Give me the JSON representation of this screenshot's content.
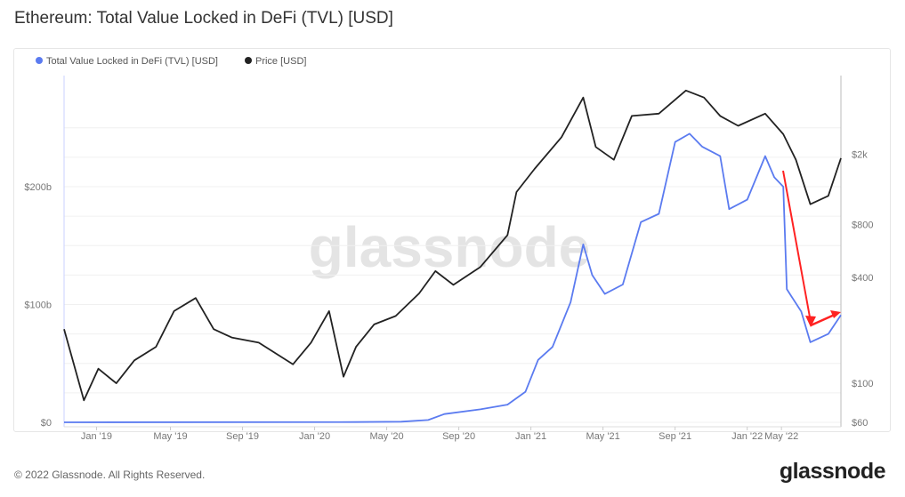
{
  "title": "Ethereum: Total Value Locked in DeFi (TVL) [USD]",
  "footer": "© 2022 Glassnode. All Rights Reserved.",
  "logo": "glassnode",
  "watermark": "glassnode",
  "chart_data": {
    "type": "line",
    "title": "Ethereum: Total Value Locked in DeFi (TVL) [USD]",
    "x_unit": "months since mid-Nov 2018",
    "xlim": [
      0,
      43.1
    ],
    "x_ticks": [
      {
        "m": 1.8,
        "label": "Jan '19"
      },
      {
        "m": 5.9,
        "label": "May '19"
      },
      {
        "m": 9.9,
        "label": "Sep '19"
      },
      {
        "m": 13.9,
        "label": "Jan '20"
      },
      {
        "m": 17.9,
        "label": "May '20"
      },
      {
        "m": 21.9,
        "label": "Sep '20"
      },
      {
        "m": 25.9,
        "label": "Jan '21"
      },
      {
        "m": 29.9,
        "label": "May '21"
      },
      {
        "m": 33.9,
        "label": "Sep '21"
      },
      {
        "m": 37.9,
        "label": "Jan '22"
      },
      {
        "m": 39.8,
        "label": "May '22"
      }
    ],
    "left_axis": {
      "scale": "linear",
      "ylim": [
        0,
        270
      ],
      "ticks": [
        {
          "v": 0,
          "label": "$0"
        },
        {
          "v": 100,
          "label": "$100b"
        },
        {
          "v": 200,
          "label": "$200b"
        }
      ]
    },
    "right_axis": {
      "scale": "log",
      "ylim": [
        60,
        10000
      ],
      "ticks": [
        {
          "v": 60,
          "label": "$60"
        },
        {
          "v": 100,
          "label": "$100"
        },
        {
          "v": 400,
          "label": "$400"
        },
        {
          "v": 800,
          "label": "$800"
        },
        {
          "v": 2000,
          "label": "$2k"
        }
      ]
    },
    "legend": {
      "placement": "top-left"
    },
    "series": [
      {
        "name": "Total Value Locked in DeFi (TVL) [USD]",
        "axis": "left",
        "unit": "billion USD",
        "color": "#5b7bf0",
        "points": [
          [
            0,
            0
          ],
          [
            16.2,
            0.2
          ],
          [
            18.7,
            0.5
          ],
          [
            20.2,
            2
          ],
          [
            21.1,
            7
          ],
          [
            23.1,
            11
          ],
          [
            24.6,
            15
          ],
          [
            25.6,
            26
          ],
          [
            26.3,
            53
          ],
          [
            27.1,
            64
          ],
          [
            28.1,
            102
          ],
          [
            28.8,
            151
          ],
          [
            29.3,
            125
          ],
          [
            30.0,
            109
          ],
          [
            31.0,
            117
          ],
          [
            32.0,
            170
          ],
          [
            33.0,
            177
          ],
          [
            33.9,
            238
          ],
          [
            34.7,
            245
          ],
          [
            35.4,
            234
          ],
          [
            36.4,
            226
          ],
          [
            36.9,
            181
          ],
          [
            37.9,
            189
          ],
          [
            38.9,
            226
          ],
          [
            39.4,
            208
          ],
          [
            39.9,
            200
          ],
          [
            40.1,
            113
          ],
          [
            40.9,
            94
          ],
          [
            41.4,
            68
          ],
          [
            42.4,
            75
          ],
          [
            43.1,
            91
          ]
        ]
      },
      {
        "name": "Price [USD]",
        "axis": "right",
        "unit": "USD",
        "color": "#222222",
        "points": [
          [
            0,
            203
          ],
          [
            1.1,
            80
          ],
          [
            1.9,
            121
          ],
          [
            2.9,
            100
          ],
          [
            3.9,
            135
          ],
          [
            5.1,
            161
          ],
          [
            6.1,
            257
          ],
          [
            7.3,
            305
          ],
          [
            8.3,
            203
          ],
          [
            9.3,
            182
          ],
          [
            10.8,
            170
          ],
          [
            12.7,
            128
          ],
          [
            13.7,
            170
          ],
          [
            14.7,
            257
          ],
          [
            15.5,
            109
          ],
          [
            16.2,
            161
          ],
          [
            17.2,
            216
          ],
          [
            18.4,
            241
          ],
          [
            19.7,
            324
          ],
          [
            20.6,
            434
          ],
          [
            21.6,
            362
          ],
          [
            23.1,
            458
          ],
          [
            24.6,
            695
          ],
          [
            25.1,
            1220
          ],
          [
            26.1,
            1650
          ],
          [
            27.6,
            2500
          ],
          [
            28.8,
            4200
          ],
          [
            29.5,
            2200
          ],
          [
            30.5,
            1860
          ],
          [
            31.5,
            3300
          ],
          [
            33.0,
            3400
          ],
          [
            34.5,
            4600
          ],
          [
            35.5,
            4200
          ],
          [
            36.4,
            3300
          ],
          [
            37.4,
            2900
          ],
          [
            38.9,
            3400
          ],
          [
            39.9,
            2600
          ],
          [
            40.6,
            1860
          ],
          [
            41.4,
            1040
          ],
          [
            42.4,
            1160
          ],
          [
            43.1,
            1900
          ]
        ]
      }
    ]
  }
}
